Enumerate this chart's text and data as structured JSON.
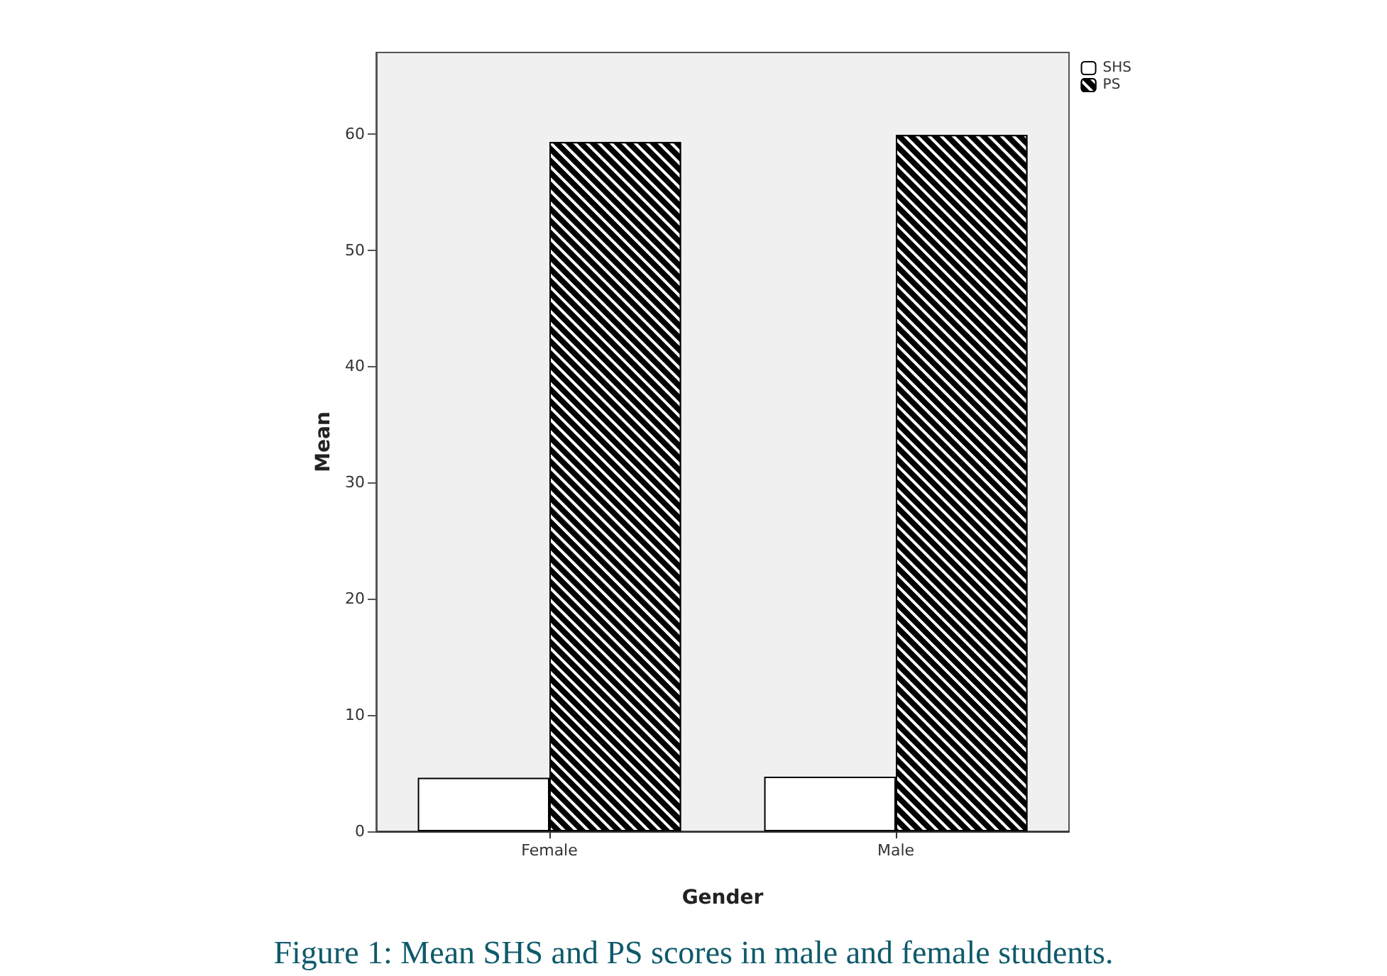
{
  "chart_data": {
    "type": "bar",
    "title": "Figure 1: Mean SHS and PS scores in male and female students.",
    "xlabel": "Gender",
    "ylabel": "Mean",
    "categories": [
      "Female",
      "Male"
    ],
    "series": [
      {
        "name": "SHS",
        "color": "#ffffff",
        "values": [
          4.6,
          4.7
        ]
      },
      {
        "name": "PS",
        "color": "#000000",
        "values": [
          59.3,
          59.9
        ]
      }
    ],
    "ylim": [
      0,
      67
    ],
    "yticks": [
      0,
      10,
      20,
      30,
      40,
      50,
      60
    ],
    "grid": false,
    "legend": "top right"
  }
}
